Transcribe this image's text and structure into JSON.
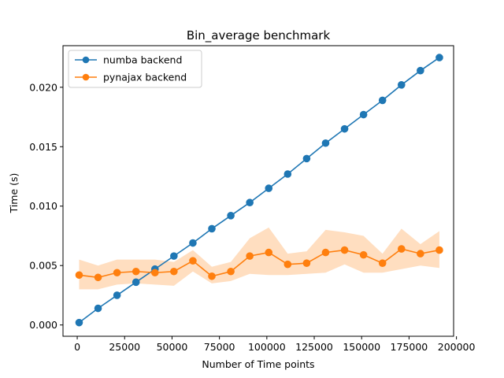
{
  "chart_data": {
    "type": "line",
    "title": "Bin_average benchmark",
    "xlabel": "Number of Time points",
    "ylabel": "Time (s)",
    "xlim": [
      -7500,
      198500
    ],
    "ylim": [
      -0.00095,
      0.0235
    ],
    "x_ticks": [
      0,
      25000,
      50000,
      75000,
      100000,
      125000,
      150000,
      175000,
      200000
    ],
    "y_ticks": [
      0.0,
      0.005,
      0.01,
      0.015,
      0.02
    ],
    "y_tick_labels": [
      "0.000",
      "0.005",
      "0.010",
      "0.015",
      "0.020"
    ],
    "legend_position": "upper-left",
    "x": [
      1000,
      11000,
      21000,
      31000,
      41000,
      51000,
      61000,
      71000,
      81000,
      91000,
      101000,
      111000,
      121000,
      131000,
      141000,
      151000,
      161000,
      171000,
      181000,
      191000
    ],
    "series": [
      {
        "name": "numba backend",
        "color": "#1f77b4",
        "values": [
          0.0002,
          0.0014,
          0.0025,
          0.0036,
          0.0047,
          0.0058,
          0.0069,
          0.0081,
          0.0092,
          0.0103,
          0.0115,
          0.0127,
          0.014,
          0.0153,
          0.0165,
          0.0177,
          0.0189,
          0.0202,
          0.0214,
          0.0225
        ]
      },
      {
        "name": "pynajax backend",
        "color": "#ff7f0e",
        "band_color": "#ffdec0",
        "values": [
          0.0042,
          0.004,
          0.0044,
          0.0045,
          0.0044,
          0.0045,
          0.0054,
          0.0041,
          0.0045,
          0.0058,
          0.0061,
          0.0051,
          0.0052,
          0.0061,
          0.0063,
          0.0059,
          0.0052,
          0.0064,
          0.006,
          0.0063
        ],
        "band_upper": [
          0.0055,
          0.005,
          0.0055,
          0.0055,
          0.0055,
          0.0053,
          0.0063,
          0.0049,
          0.0053,
          0.0073,
          0.0082,
          0.006,
          0.0062,
          0.008,
          0.0078,
          0.0075,
          0.006,
          0.0081,
          0.0068,
          0.0079
        ],
        "band_lower": [
          0.003,
          0.003,
          0.0034,
          0.0035,
          0.0034,
          0.0033,
          0.0045,
          0.0035,
          0.0037,
          0.0043,
          0.0042,
          0.0042,
          0.0043,
          0.0044,
          0.0051,
          0.0044,
          0.0044,
          0.0047,
          0.005,
          0.0048
        ]
      }
    ]
  }
}
